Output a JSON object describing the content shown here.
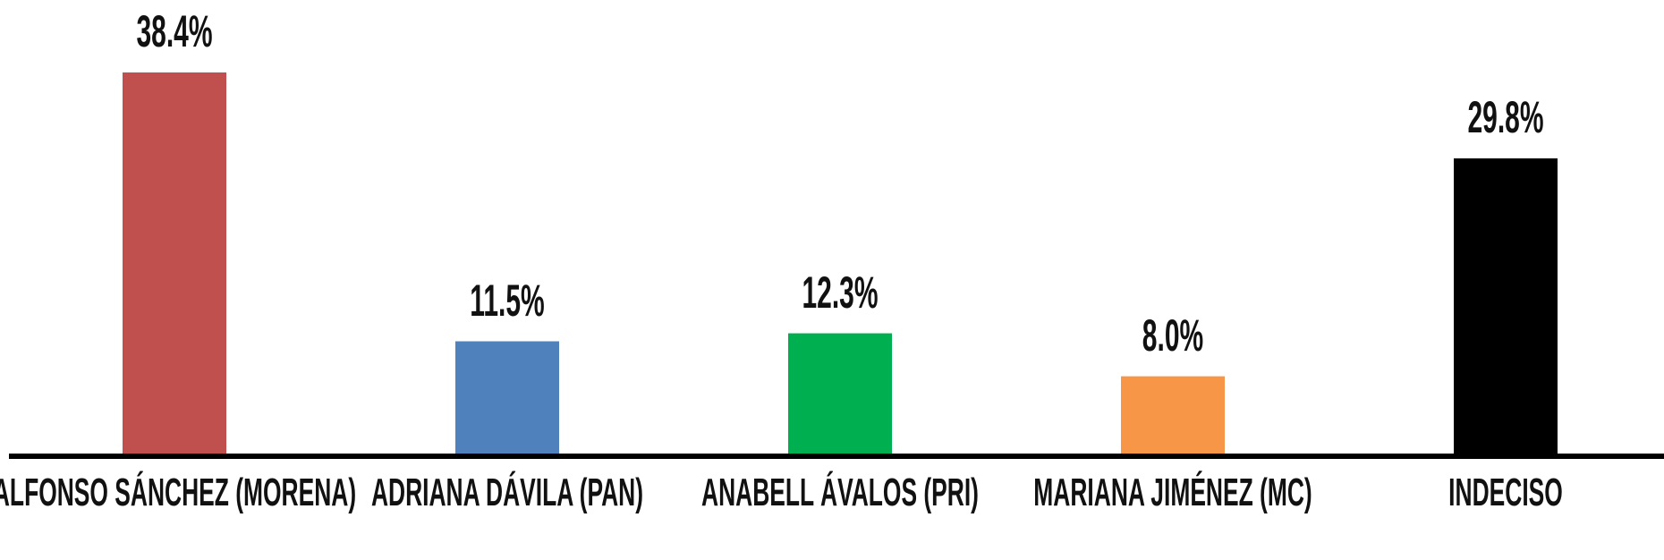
{
  "chart_data": {
    "type": "bar",
    "categories": [
      "ALFONSO SÁNCHEZ (MORENA)",
      "ADRIANA DÁVILA (PAN)",
      "ANABELL ÁVALOS (PRI)",
      "MARIANA JIMÉNEZ (MC)",
      "INDECISO"
    ],
    "values": [
      38.4,
      11.5,
      12.3,
      8.0,
      29.8
    ],
    "value_labels": [
      "38.4%",
      "11.5%",
      "12.3%",
      "8.0%",
      "29.8%"
    ],
    "colors": [
      "#c0504d",
      "#4f81bd",
      "#00b050",
      "#f79646",
      "#000000"
    ]
  }
}
